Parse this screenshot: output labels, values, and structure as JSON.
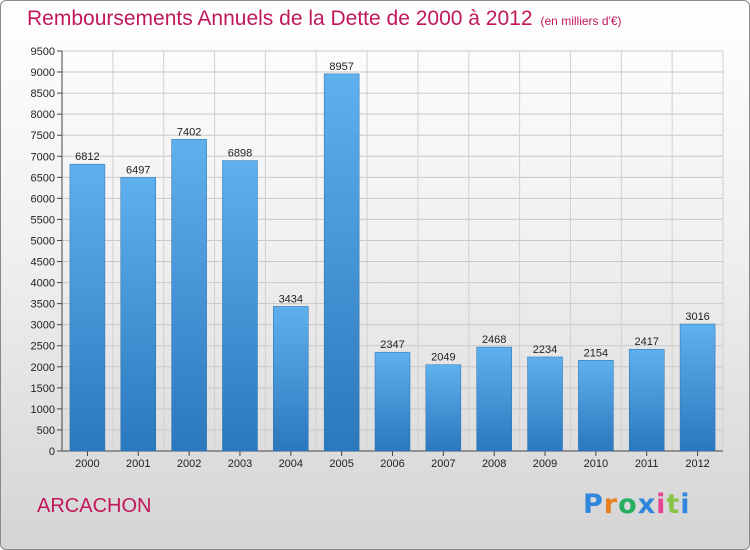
{
  "title": "Remboursements Annuels de la Dette de 2000 à 2012",
  "subtitle": "(en milliers d'€)",
  "city": "ARCACHON",
  "logo": {
    "letters": [
      "P",
      "r",
      "o",
      "x",
      "i",
      "t",
      "i"
    ],
    "colors": [
      "#2e86de",
      "#e67e22",
      "#27ae60",
      "#2e86de",
      "#e84393",
      "#8bc34a",
      "#2e86de"
    ]
  },
  "chart_data": {
    "type": "bar",
    "title": "Remboursements Annuels de la Dette de 2000 à 2012",
    "subtitle": "(en milliers d'€)",
    "categories": [
      "2000",
      "2001",
      "2002",
      "2003",
      "2004",
      "2005",
      "2006",
      "2007",
      "2008",
      "2009",
      "2010",
      "2011",
      "2012"
    ],
    "values": [
      6812,
      6497,
      7402,
      6898,
      3434,
      8957,
      2347,
      2049,
      2468,
      2234,
      2154,
      2417,
      3016
    ],
    "ylim": [
      0,
      9500
    ],
    "ytick_step": 500,
    "grid": true,
    "bar_color": "#3a8fd6"
  }
}
